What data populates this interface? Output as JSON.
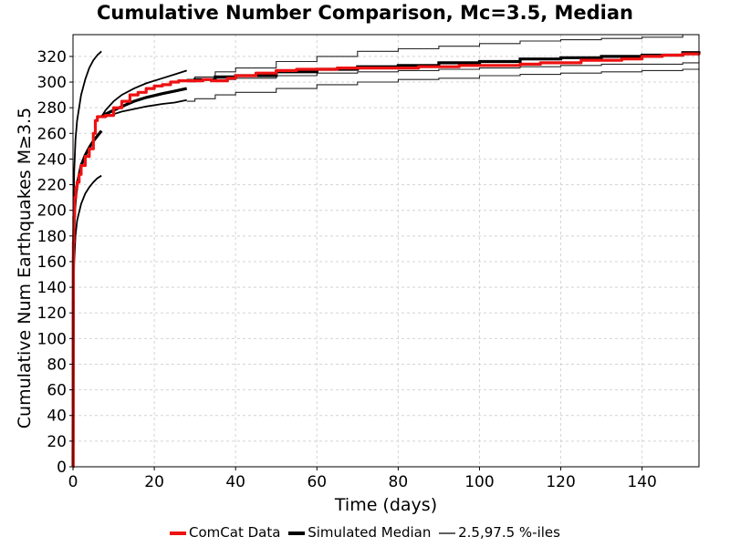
{
  "chart_data": {
    "type": "line",
    "title": "Cumulative Number Comparison, Mc=3.5, Median",
    "xlabel": "Time (days)",
    "ylabel": "Cumulative Num Earthquakes M≥3.5",
    "xlim": [
      0,
      154
    ],
    "ylim": [
      0,
      337
    ],
    "xticks": [
      0,
      20,
      40,
      60,
      80,
      100,
      120,
      140
    ],
    "yticks": [
      0,
      20,
      40,
      60,
      80,
      100,
      120,
      140,
      160,
      180,
      200,
      220,
      240,
      260,
      280,
      300,
      320
    ],
    "grid": true,
    "legend_position": "bottom",
    "colors": {
      "comcat": "#ee1111",
      "median": "#000000",
      "percentile": "#000000"
    },
    "series": [
      {
        "name": "ComCat Data",
        "role": "observed",
        "x": [
          0,
          0.05,
          0.1,
          0.2,
          0.4,
          0.7,
          1.0,
          1.5,
          2,
          3,
          4,
          5,
          5.5,
          6,
          7,
          8,
          10,
          12,
          14,
          16,
          18,
          20,
          22,
          24,
          26,
          28,
          30,
          32,
          34,
          36,
          38,
          40,
          45,
          50,
          55,
          60,
          65,
          70,
          75,
          80,
          85,
          90,
          95,
          100,
          105,
          110,
          115,
          120,
          125,
          130,
          135,
          140,
          145,
          150,
          154
        ],
        "y": [
          0,
          130,
          175,
          195,
          210,
          218,
          222,
          228,
          235,
          242,
          248,
          260,
          270,
          273,
          273,
          274,
          280,
          285,
          290,
          292,
          295,
          297,
          298,
          300,
          301,
          301,
          301,
          302,
          301,
          301,
          303,
          305,
          307,
          309,
          310,
          310,
          311,
          311,
          311,
          311,
          312,
          312,
          313,
          313,
          313,
          314,
          315,
          315,
          317,
          317,
          318,
          320,
          321,
          322,
          323
        ]
      },
      {
        "name": "Simulated Median",
        "role": "median",
        "segments": [
          {
            "x": [
              0,
              0.1,
              0.3,
              0.6,
              1,
              2,
              3,
              4,
              5,
              6,
              7
            ],
            "y": [
              0,
              160,
              195,
              210,
              220,
              235,
              243,
              249,
              254,
              258,
              262
            ]
          },
          {
            "x": [
              7,
              8,
              10,
              12,
              15,
              18,
              22,
              25,
              28
            ],
            "y": [
              273,
              275,
              278,
              281,
              285,
              288,
              291,
              293,
              295
            ]
          },
          {
            "x": [
              28,
              30,
              35,
              40,
              50,
              60,
              70,
              80,
              90,
              100,
              110,
              120,
              130,
              140,
              150,
              154
            ],
            "y": [
              301,
              302,
              304,
              305,
              308,
              310,
              312,
              313,
              315,
              316,
              318,
              319,
              320,
              321,
              323,
              324
            ]
          }
        ]
      },
      {
        "name": "2.5,97.5 %-iles",
        "role": "percentiles",
        "segments": [
          {
            "x": [
              0,
              0.1,
              0.3,
              0.6,
              1,
              2,
              3,
              4,
              5,
              6,
              7
            ],
            "y": [
              0,
              180,
              230,
              255,
              270,
              290,
              302,
              311,
              317,
              321,
              324
            ]
          },
          {
            "x": [
              0,
              0.1,
              0.3,
              0.6,
              1,
              2,
              3,
              4,
              5,
              6,
              7
            ],
            "y": [
              0,
              120,
              160,
              180,
              192,
              205,
              213,
              218,
              222,
              225,
              227
            ]
          },
          {
            "x": [
              7,
              8,
              10,
              12,
              15,
              18,
              22,
              25,
              28
            ],
            "y": [
              273,
              278,
              285,
              290,
              295,
              299,
              303,
              306,
              309
            ]
          },
          {
            "x": [
              7,
              8,
              10,
              12,
              15,
              18,
              22,
              25,
              28
            ],
            "y": [
              273,
              273,
              275,
              277,
              279,
              281,
              283,
              284,
              286
            ]
          },
          {
            "x": [
              28,
              30,
              35,
              40,
              50,
              60,
              70,
              80,
              90,
              100,
              110,
              120,
              130,
              140,
              150,
              154
            ],
            "y": [
              302,
              304,
              308,
              311,
              316,
              320,
              324,
              326,
              328,
              330,
              332,
              333,
              334,
              335,
              337,
              337
            ]
          },
          {
            "x": [
              28,
              30,
              35,
              40,
              50,
              60,
              70,
              80,
              90,
              100,
              110,
              120,
              130,
              140,
              150,
              154
            ],
            "y": [
              302,
              302,
              302,
              303,
              305,
              307,
              308,
              309,
              310,
              311,
              312,
              313,
              314,
              314,
              315,
              316
            ]
          },
          {
            "x": [
              28,
              30,
              35,
              40,
              50,
              60,
              70,
              80,
              90,
              100,
              110,
              120,
              130,
              140,
              150,
              154
            ],
            "y": [
              285,
              287,
              290,
              292,
              295,
              298,
              300,
              302,
              303,
              305,
              306,
              307,
              308,
              309,
              310,
              311
            ]
          }
        ]
      }
    ],
    "legend": [
      {
        "label": "ComCat Data",
        "style": "thick-red"
      },
      {
        "label": "Simulated Median",
        "style": "thick-black"
      },
      {
        "label": "2.5,97.5 %-iles",
        "style": "thin-black"
      }
    ]
  }
}
